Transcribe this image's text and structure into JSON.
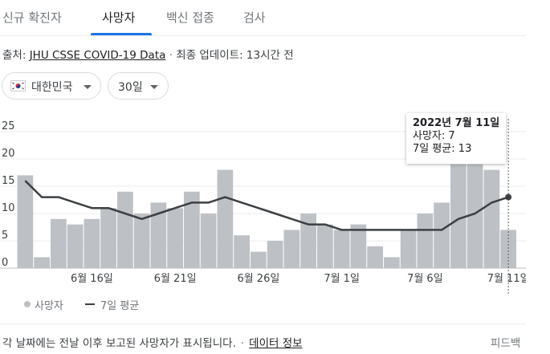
{
  "tabs": [
    {
      "label": "신규 확진자"
    },
    {
      "label": "사망자"
    },
    {
      "label": "백신 접종"
    },
    {
      "label": "검사"
    }
  ],
  "source": {
    "prefix": "출처:",
    "link": "JHU CSSE COVID-19 Data",
    "updated": "최종 업데이트: 13시간 전"
  },
  "filters": {
    "country": "대한민국",
    "range": "30일"
  },
  "tooltip": {
    "date": "2022년 7월 11일",
    "deaths": "사망자: 7",
    "avg": "7일 평균: 13"
  },
  "legend": {
    "bars": "사망자",
    "line": "7일 평균"
  },
  "footnote": {
    "text": "각 날짜에는 전날 이후 보고된 사망자가 표시됩니다.",
    "link": "데이터 정보",
    "feedback": "피드백"
  },
  "colors": {
    "bar": "#bdc1c6",
    "line": "#3c4043",
    "accent": "#1a73e8"
  },
  "chart_data": {
    "type": "bar",
    "ylim": [
      0,
      25
    ],
    "yticks": [
      "0",
      "5",
      "10",
      "15",
      "20",
      "25"
    ],
    "xtick_labels": [
      {
        "index": 4,
        "label": "6월 16일"
      },
      {
        "index": 9,
        "label": "6월 21일"
      },
      {
        "index": 14,
        "label": "6월 26일"
      },
      {
        "index": 19,
        "label": "7월 1일"
      },
      {
        "index": 24,
        "label": "7월 6일"
      },
      {
        "index": 29,
        "label": "7월 11일"
      }
    ],
    "categories": [
      "6월 12일",
      "6월 13일",
      "6월 14일",
      "6월 15일",
      "6월 16일",
      "6월 17일",
      "6월 18일",
      "6월 19일",
      "6월 20일",
      "6월 21일",
      "6월 22일",
      "6월 23일",
      "6월 24일",
      "6월 25일",
      "6월 26일",
      "6월 27일",
      "6월 28일",
      "6월 29일",
      "6월 30일",
      "7월 1일",
      "7월 2일",
      "7월 3일",
      "7월 4일",
      "7월 5일",
      "7월 6일",
      "7월 7일",
      "7월 8일",
      "7월 9일",
      "7월 10일",
      "7월 11일"
    ],
    "series": [
      {
        "name": "사망자",
        "type": "bar",
        "values": [
          17,
          2,
          9,
          8,
          9,
          11,
          14,
          10,
          12,
          11,
          14,
          10,
          18,
          6,
          3,
          5,
          7,
          10,
          8,
          7,
          8,
          4,
          2,
          7,
          10,
          12,
          19,
          19,
          18,
          7
        ]
      },
      {
        "name": "7일 평균",
        "type": "line",
        "values": [
          16,
          13,
          13,
          12,
          11,
          11,
          10,
          9,
          10,
          11,
          12,
          12,
          13,
          12,
          11,
          10,
          9,
          8,
          8,
          7,
          7,
          7,
          7,
          7,
          7,
          7,
          9,
          10,
          12,
          13
        ]
      }
    ],
    "highlight_index": 29,
    "legend_position": "bottom-left",
    "grid": true
  }
}
